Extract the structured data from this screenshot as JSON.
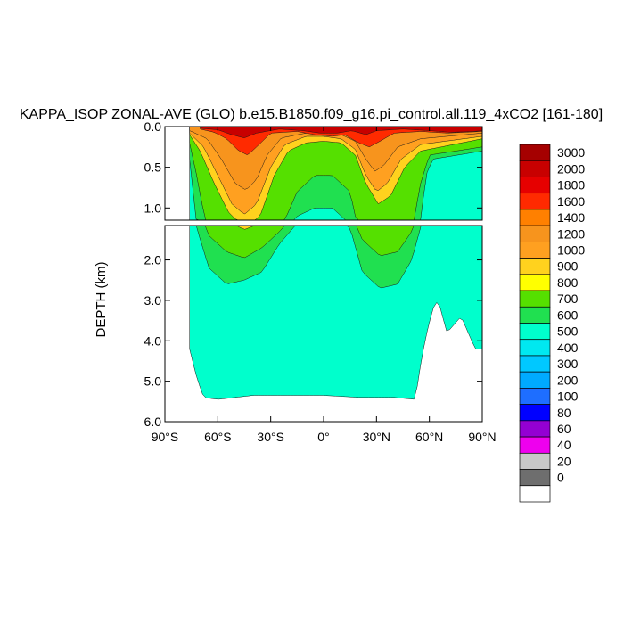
{
  "chart_data": {
    "type": "heatmap",
    "title": "KAPPA_ISOP ZONAL-AVE (GLO) b.e15.B1850.f09_g16.pi_control.all.119_4xCO2 [161-180]",
    "ylabel": "DEPTH (km)",
    "xlabel": "",
    "xlim": [
      -90,
      90
    ],
    "ylim": [
      6.0,
      0.0
    ],
    "x_ticks": [
      {
        "value": -90,
        "label": "90°S"
      },
      {
        "value": -60,
        "label": "60°S"
      },
      {
        "value": -30,
        "label": "30°S"
      },
      {
        "value": 0,
        "label": "0°"
      },
      {
        "value": 30,
        "label": "30°N"
      },
      {
        "value": 60,
        "label": "60°N"
      },
      {
        "value": 90,
        "label": "90°N"
      }
    ],
    "upper_panel": {
      "depth_range": [
        0.0,
        1.15
      ],
      "y_ticks": [
        {
          "value": 0.0,
          "label": "0.0"
        },
        {
          "value": 0.5,
          "label": "0.5"
        },
        {
          "value": 1.0,
          "label": "1.0"
        }
      ]
    },
    "lower_panel": {
      "depth_range": [
        1.15,
        6.0
      ],
      "y_ticks": [
        {
          "value": 2.0,
          "label": "2.0"
        },
        {
          "value": 3.0,
          "label": "3.0"
        },
        {
          "value": 4.0,
          "label": "4.0"
        },
        {
          "value": 5.0,
          "label": "5.0"
        },
        {
          "value": 6.0,
          "label": "6.0"
        }
      ]
    },
    "colorbar": {
      "levels": [
        "3000",
        "2000",
        "1800",
        "1600",
        "1400",
        "1200",
        "1000",
        "900",
        "800",
        "700",
        "600",
        "500",
        "400",
        "300",
        "200",
        "100",
        "80",
        "60",
        "40",
        "20",
        "0"
      ],
      "colors": [
        "#A50000",
        "#C80000",
        "#E60000",
        "#FF2A00",
        "#FF8000",
        "#F7941D",
        "#FFA020",
        "#FFD21E",
        "#FFFF00",
        "#55E000",
        "#20E050",
        "#00FFCC",
        "#00E8F0",
        "#00C8FF",
        "#00AAFF",
        "#1E6EFF",
        "#0000FF",
        "#9400D3",
        "#EE00EE",
        "#C8C8C8",
        "#6E6E6E",
        "#FFFFFF"
      ]
    },
    "fields": {
      "southern_edge_lat": -76,
      "ocean_bottom_depth": [
        [
          -76,
          4.2
        ],
        [
          -72,
          4.9
        ],
        [
          -68,
          5.4
        ],
        [
          -60,
          5.45
        ],
        [
          -50,
          5.4
        ],
        [
          -40,
          5.35
        ],
        [
          -20,
          5.35
        ],
        [
          0,
          5.35
        ],
        [
          20,
          5.4
        ],
        [
          40,
          5.4
        ],
        [
          52,
          5.45
        ],
        [
          55,
          4.6
        ],
        [
          58,
          3.9
        ],
        [
          62,
          3.2
        ],
        [
          65,
          3.0
        ],
        [
          70,
          3.8
        ],
        [
          74,
          3.6
        ],
        [
          78,
          3.4
        ],
        [
          82,
          3.8
        ],
        [
          86,
          4.2
        ],
        [
          90,
          4.2
        ]
      ],
      "zones": [
        {
          "value": 500,
          "top": [
            [
              -76,
              0.0
            ],
            [
              90,
              0.0
            ]
          ],
          "bottom": "ocean_bottom"
        },
        {
          "value": 600,
          "top": [
            [
              -76,
              0.0
            ],
            [
              90,
              0.0
            ]
          ],
          "bottom": [
            [
              -76,
              0.4
            ],
            [
              -72,
              1.2
            ],
            [
              -65,
              2.2
            ],
            [
              -55,
              2.6
            ],
            [
              -45,
              2.5
            ],
            [
              -35,
              2.3
            ],
            [
              -25,
              1.6
            ],
            [
              -15,
              1.1
            ],
            [
              -5,
              1.0
            ],
            [
              5,
              1.0
            ],
            [
              15,
              1.2
            ],
            [
              22,
              2.3
            ],
            [
              32,
              2.7
            ],
            [
              42,
              2.6
            ],
            [
              50,
              2.0
            ],
            [
              55,
              1.2
            ],
            [
              58,
              0.6
            ],
            [
              62,
              0.4
            ],
            [
              90,
              0.3
            ]
          ]
        },
        {
          "value": 700,
          "top": [
            [
              -76,
              0.0
            ],
            [
              90,
              0.0
            ]
          ],
          "bottom": [
            [
              -76,
              0.2
            ],
            [
              -72,
              0.6
            ],
            [
              -65,
              1.4
            ],
            [
              -55,
              1.8
            ],
            [
              -45,
              1.95
            ],
            [
              -35,
              1.7
            ],
            [
              -25,
              1.3
            ],
            [
              -15,
              0.8
            ],
            [
              -5,
              0.6
            ],
            [
              5,
              0.6
            ],
            [
              15,
              0.8
            ],
            [
              22,
              1.5
            ],
            [
              32,
              1.9
            ],
            [
              42,
              1.8
            ],
            [
              50,
              1.3
            ],
            [
              55,
              0.7
            ],
            [
              60,
              0.35
            ],
            [
              90,
              0.25
            ]
          ]
        },
        {
          "value": 900,
          "top": [
            [
              -76,
              0.0
            ],
            [
              90,
              0.0
            ]
          ],
          "bottom": [
            [
              -76,
              0.1
            ],
            [
              -70,
              0.3
            ],
            [
              -62,
              0.7
            ],
            [
              -54,
              1.05
            ],
            [
              -45,
              1.25
            ],
            [
              -36,
              1.1
            ],
            [
              -28,
              0.6
            ],
            [
              -20,
              0.3
            ],
            [
              -10,
              0.2
            ],
            [
              0,
              0.18
            ],
            [
              10,
              0.2
            ],
            [
              18,
              0.35
            ],
            [
              24,
              0.7
            ],
            [
              31,
              0.95
            ],
            [
              38,
              0.85
            ],
            [
              46,
              0.5
            ],
            [
              55,
              0.3
            ],
            [
              90,
              0.15
            ]
          ]
        },
        {
          "value": 1000,
          "top": [
            [
              -76,
              0.0
            ],
            [
              90,
              0.0
            ]
          ],
          "bottom": [
            [
              -76,
              0.08
            ],
            [
              -68,
              0.25
            ],
            [
              -60,
              0.6
            ],
            [
              -52,
              0.95
            ],
            [
              -45,
              1.08
            ],
            [
              -38,
              0.95
            ],
            [
              -30,
              0.5
            ],
            [
              -22,
              0.22
            ],
            [
              -10,
              0.12
            ],
            [
              0,
              0.12
            ],
            [
              10,
              0.15
            ],
            [
              18,
              0.28
            ],
            [
              24,
              0.6
            ],
            [
              30,
              0.8
            ],
            [
              36,
              0.7
            ],
            [
              44,
              0.4
            ],
            [
              55,
              0.22
            ],
            [
              90,
              0.12
            ]
          ]
        },
        {
          "value": 1200,
          "top": [
            [
              -76,
              0.0
            ],
            [
              90,
              0.0
            ]
          ],
          "bottom": [
            [
              -76,
              0.05
            ],
            [
              -66,
              0.15
            ],
            [
              -58,
              0.4
            ],
            [
              -50,
              0.7
            ],
            [
              -44,
              0.78
            ],
            [
              -38,
              0.65
            ],
            [
              -32,
              0.35
            ],
            [
              -24,
              0.14
            ],
            [
              -10,
              0.08
            ],
            [
              0,
              0.08
            ],
            [
              10,
              0.1
            ],
            [
              18,
              0.18
            ],
            [
              24,
              0.4
            ],
            [
              29,
              0.55
            ],
            [
              34,
              0.48
            ],
            [
              42,
              0.25
            ],
            [
              55,
              0.15
            ],
            [
              90,
              0.08
            ]
          ]
        },
        {
          "value": 1600,
          "top": [
            [
              -70,
              0.0
            ],
            [
              90,
              0.0
            ]
          ],
          "bottom": [
            [
              -70,
              0.03
            ],
            [
              -62,
              0.07
            ],
            [
              -55,
              0.15
            ],
            [
              -48,
              0.3
            ],
            [
              -43,
              0.35
            ],
            [
              -38,
              0.25
            ],
            [
              -30,
              0.08
            ],
            [
              -15,
              0.06
            ],
            [
              -5,
              0.1
            ],
            [
              5,
              0.12
            ],
            [
              12,
              0.1
            ],
            [
              20,
              0.2
            ],
            [
              26,
              0.25
            ],
            [
              32,
              0.18
            ],
            [
              40,
              0.08
            ],
            [
              55,
              0.06
            ],
            [
              70,
              0.08
            ],
            [
              90,
              0.06
            ]
          ]
        },
        {
          "value": 2000,
          "top": [
            [
              -70,
              0.0
            ],
            [
              90,
              0.0
            ]
          ],
          "bottom": [
            [
              -70,
              0.02
            ],
            [
              -60,
              0.04
            ],
            [
              -52,
              0.1
            ],
            [
              -45,
              0.14
            ],
            [
              -38,
              0.08
            ],
            [
              -25,
              0.03
            ],
            [
              -12,
              0.05
            ],
            [
              -2,
              0.08
            ],
            [
              8,
              0.08
            ],
            [
              16,
              0.05
            ],
            [
              24,
              0.1
            ],
            [
              30,
              0.05
            ],
            [
              45,
              0.03
            ],
            [
              60,
              0.05
            ],
            [
              72,
              0.07
            ],
            [
              85,
              0.06
            ],
            [
              90,
              0.05
            ]
          ]
        }
      ]
    }
  }
}
